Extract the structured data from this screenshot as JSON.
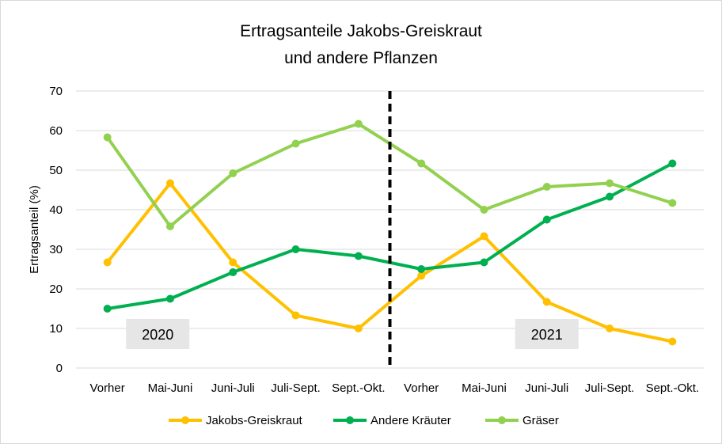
{
  "chart_data": {
    "type": "line",
    "title_line1": "Ertragsanteile Jakobs-Greiskraut",
    "title_line2": "und andere Pflanzen",
    "xlabel": "",
    "ylabel": "Ertragsanteil (%)",
    "ylim": [
      0,
      70
    ],
    "yticks": [
      0,
      10,
      20,
      30,
      40,
      50,
      60,
      70
    ],
    "categories": [
      "Vorher",
      "Mai-Juni",
      "Juni-Juli",
      "Juli-Sept.",
      "Sept.-Okt.",
      "Vorher",
      "Mai-Juni",
      "Juni-Juli",
      "Juli-Sept.",
      "Sept.-Okt."
    ],
    "grid": "horizontal",
    "legend_position": "bottom",
    "series": [
      {
        "name": "Jakobs-Greiskraut",
        "color": "#ffc000",
        "values": [
          26.7,
          46.7,
          26.7,
          13.3,
          10,
          23.3,
          33.3,
          16.7,
          10,
          6.7
        ]
      },
      {
        "name": "Andere Kräuter",
        "color": "#00b050",
        "values": [
          15,
          17.5,
          24.2,
          30,
          28.3,
          25,
          26.7,
          37.5,
          43.3,
          51.7
        ]
      },
      {
        "name": "Gräser",
        "color": "#92d050",
        "values": [
          58.3,
          35.8,
          49.2,
          56.7,
          61.7,
          51.7,
          40,
          45.8,
          46.7,
          41.7
        ]
      }
    ],
    "annotations": [
      {
        "text": "2020"
      },
      {
        "text": "2021"
      }
    ],
    "divider": {
      "style": "dashed",
      "color": "#000000"
    }
  }
}
